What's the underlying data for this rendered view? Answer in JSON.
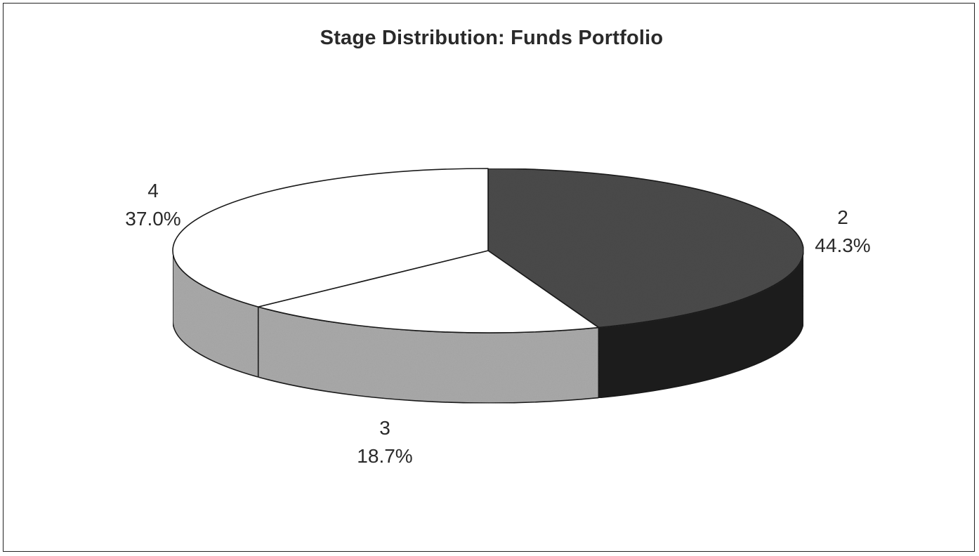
{
  "chart_data": {
    "type": "pie",
    "title": "Stage Distribution: Funds Portfolio",
    "slices": [
      {
        "label": "2",
        "value": 44.3,
        "value_text": "44.3%",
        "color": "#4a4a4a",
        "side_color": "#1c1c1c"
      },
      {
        "label": "3",
        "value": 18.7,
        "value_text": "18.7%",
        "color": "#ffffff",
        "side_color": "#a9a9a9"
      },
      {
        "label": "4",
        "value": 37.0,
        "value_text": "37.0%",
        "color": "#ffffff",
        "side_color": "#a9a9a9"
      }
    ],
    "legend": "none",
    "style": "3d"
  }
}
